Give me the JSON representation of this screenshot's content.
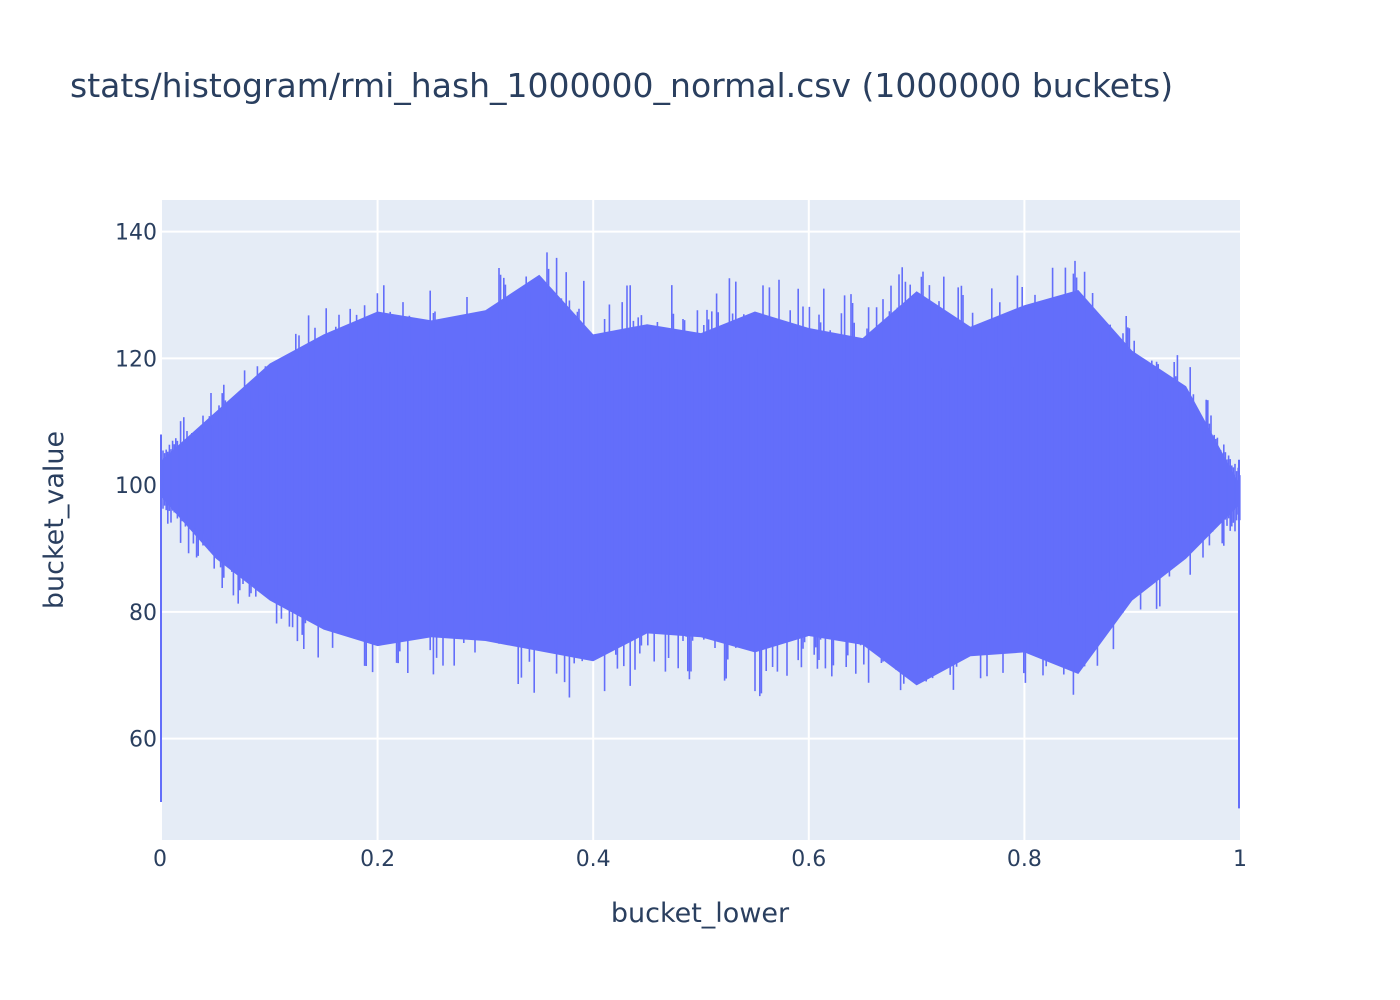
{
  "chart_data": {
    "type": "line",
    "title": "stats/histogram/rmi_hash_1000000_normal.csv (1000000 buckets)",
    "xlabel": "bucket_lower",
    "ylabel": "bucket_value",
    "xlim": [
      0,
      1
    ],
    "ylim": [
      44,
      145
    ],
    "x_ticks": [
      0,
      0.2,
      0.4,
      0.6,
      0.8,
      1
    ],
    "x_tick_labels": [
      "0",
      "0.2",
      "0.4",
      "0.6",
      "0.8",
      "1"
    ],
    "y_ticks": [
      60,
      80,
      100,
      120,
      140
    ],
    "y_tick_labels": [
      "60",
      "80",
      "100",
      "120",
      "140"
    ],
    "grid": true,
    "legend": false,
    "series": [
      {
        "color": "#636efa",
        "x": [
          0.0,
          0.05,
          0.1,
          0.15,
          0.2,
          0.25,
          0.3,
          0.35,
          0.4,
          0.45,
          0.5,
          0.55,
          0.6,
          0.65,
          0.7,
          0.75,
          0.8,
          0.85,
          0.9,
          0.95,
          1.0
        ],
        "upper": [
          108,
          116,
          124,
          129,
          133,
          132,
          134,
          140,
          131,
          133,
          132,
          135,
          132,
          130,
          137,
          131,
          134,
          136,
          126,
          120,
          104
        ],
        "lower": [
          94,
          84,
          77,
          72,
          69,
          70,
          69,
          67,
          65,
          69,
          68,
          66,
          69,
          68,
          62,
          67,
          68,
          65,
          77,
          84,
          93
        ],
        "start_value": 50,
        "end_value": 49
      }
    ]
  }
}
